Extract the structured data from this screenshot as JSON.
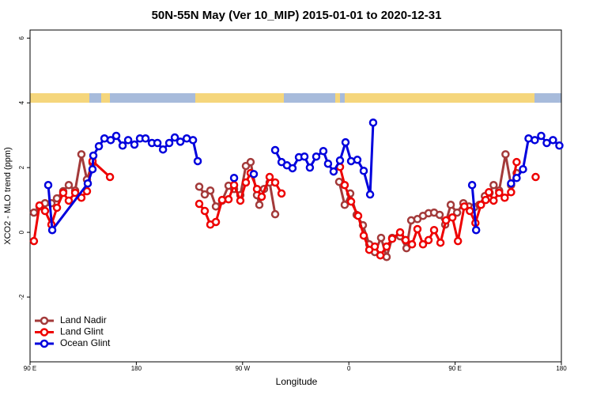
{
  "chart_data": {
    "type": "line",
    "title": "50N-55N May (Ver 10_MIP)   2015-01-01 to 2020-12-31",
    "xlabel": "Longitude",
    "ylabel": "XCO2 - MLO trend (ppm)",
    "xlim": [
      90,
      540
    ],
    "xticks": [
      {
        "value": 90,
        "label": "90 E"
      },
      180,
      {
        "value": 270,
        "label": "90 W"
      },
      {
        "value": 360,
        "label": "0"
      },
      {
        "value": 450,
        "label": "90 E"
      },
      {
        "value": 540,
        "label": "180"
      }
    ],
    "ylim": [
      -4,
      6.25
    ],
    "yticks": [
      -2,
      0,
      2,
      4,
      6
    ],
    "legend": "bottom-left",
    "series": [
      {
        "name": "Land Nadir",
        "color": "#a33a3a",
        "x": [
          93.3,
          98.0,
          102.7,
          108.1,
          112.8,
          118.1,
          122.8,
          128.2,
          133.5,
          138.2,
          142.9,
          null,
          233.3,
          238.0,
          242.7,
          247.4,
          252.7,
          258.1,
          262.8,
          268.1,
          272.8,
          276.8,
          282.2,
          284.2,
          288.2,
          292.9,
          297.6,
          null,
          351.8,
          356.5,
          361.2,
          366.6,
          371.9,
          377.3,
          382.0,
          387.3,
          392.0,
          396.7,
          403.4,
          408.8,
          412.8,
          418.1,
          422.8,
          427.5,
          432.2,
          436.9,
          441.6,
          446.3,
          451.7,
          457.0,
          461.7,
          466.4,
          470.5,
          475.2,
          479.2,
          482.6,
          487.3,
          492.7,
          497.4,
          502.1
        ],
        "values": [
          0.61,
          0.8,
          0.9,
          0.9,
          1.05,
          1.27,
          1.46,
          1.29,
          2.41,
          1.63,
          2.15,
          null,
          1.41,
          1.17,
          1.29,
          0.8,
          0.98,
          1.44,
          1.34,
          1.15,
          2.05,
          2.17,
          1.15,
          0.85,
          1.34,
          1.54,
          0.56,
          null,
          1.56,
          0.85,
          1.2,
          0.54,
          0.22,
          -0.37,
          -0.61,
          -0.17,
          -0.76,
          -0.17,
          -0.12,
          -0.49,
          0.37,
          0.41,
          0.51,
          0.59,
          0.61,
          0.54,
          0.24,
          0.85,
          0.61,
          0.9,
          0.8,
          0.78,
          0.85,
          1.12,
          1.22,
          1.46,
          1.29,
          2.41,
          1.46,
          1.83
        ]
      },
      {
        "name": "Land Glint",
        "color": "#ee0000",
        "x": [
          93.3,
          98.0,
          102.7,
          108.1,
          112.8,
          118.1,
          122.8,
          128.2,
          133.5,
          138.2,
          142.9,
          157.7,
          null,
          233.3,
          238.0,
          242.7,
          247.4,
          252.7,
          258.1,
          262.8,
          268.1,
          272.8,
          276.8,
          282.2,
          286.2,
          292.9,
          297.6,
          303.0,
          null,
          352.5,
          356.5,
          361.9,
          367.9,
          372.6,
          377.3,
          382.0,
          386.7,
          392.0,
          396.7,
          403.4,
          408.1,
          413.5,
          418.1,
          422.8,
          427.5,
          432.2,
          437.6,
          442.3,
          447.7,
          452.4,
          457.8,
          462.5,
          467.2,
          471.9,
          475.9,
          478.6,
          482.6,
          487.3,
          492.0,
          497.4,
          502.1,
          null,
          518.2
        ],
        "values": [
          -0.27,
          0.83,
          0.66,
          0.24,
          0.76,
          1.22,
          0.98,
          1.22,
          1.07,
          1.27,
          2.2,
          1.71,
          null,
          0.88,
          0.66,
          0.24,
          0.32,
          1.0,
          1.02,
          1.46,
          0.98,
          1.54,
          1.83,
          1.34,
          1.1,
          1.71,
          1.54,
          1.2,
          null,
          2.02,
          1.46,
          0.95,
          0.51,
          -0.1,
          -0.54,
          -0.44,
          -0.71,
          -0.44,
          -0.2,
          0,
          -0.24,
          -0.37,
          0.1,
          -0.37,
          -0.24,
          0.07,
          -0.32,
          0.37,
          0.46,
          -0.27,
          0.8,
          0.66,
          0.29,
          0.85,
          1.0,
          1.24,
          0.98,
          1.22,
          1.07,
          1.24,
          2.17,
          null,
          1.71
        ]
      },
      {
        "name": "Ocean Glint",
        "color": "#0000dd",
        "x": [
          105.4,
          108.8,
          138.9,
          142.9,
          143.6,
          148.3,
          153.0,
          158.3,
          163.0,
          168.4,
          173.1,
          178.4,
          183.1,
          187.8,
          193.2,
          197.9,
          202.6,
          207.9,
          212.6,
          217.3,
          222.7,
          228.0,
          232.0,
          null,
          262.8,
          null,
          279.5,
          null,
          297.6,
          303.0,
          307.6,
          312.3,
          317.7,
          322.4,
          327.0,
          332.4,
          338.4,
          342.4,
          347.1,
          352.5,
          357.2,
          361.9,
          367.2,
          372.6,
          378.0,
          380.6,
          null,
          464.4,
          467.8,
          null,
          497.4,
          502.1,
          507.5,
          512.2,
          517.5,
          522.9,
          527.6,
          532.9,
          538.3
        ],
        "values": [
          1.46,
          0.07,
          1.51,
          1.95,
          2.37,
          2.66,
          2.9,
          2.85,
          2.98,
          2.68,
          2.85,
          2.71,
          2.9,
          2.9,
          2.76,
          2.76,
          2.56,
          2.76,
          2.93,
          2.8,
          2.9,
          2.85,
          2.2,
          null,
          1.68,
          null,
          1.8,
          null,
          2.54,
          2.17,
          2.07,
          1.98,
          2.32,
          2.34,
          2.0,
          2.34,
          2.51,
          2.12,
          1.88,
          2.22,
          2.78,
          2.2,
          2.24,
          1.9,
          1.17,
          3.39,
          null,
          1.46,
          0.07,
          null,
          1.51,
          1.68,
          1.95,
          2.9,
          2.85,
          2.98,
          2.76,
          2.85,
          2.68
        ]
      }
    ]
  }
}
